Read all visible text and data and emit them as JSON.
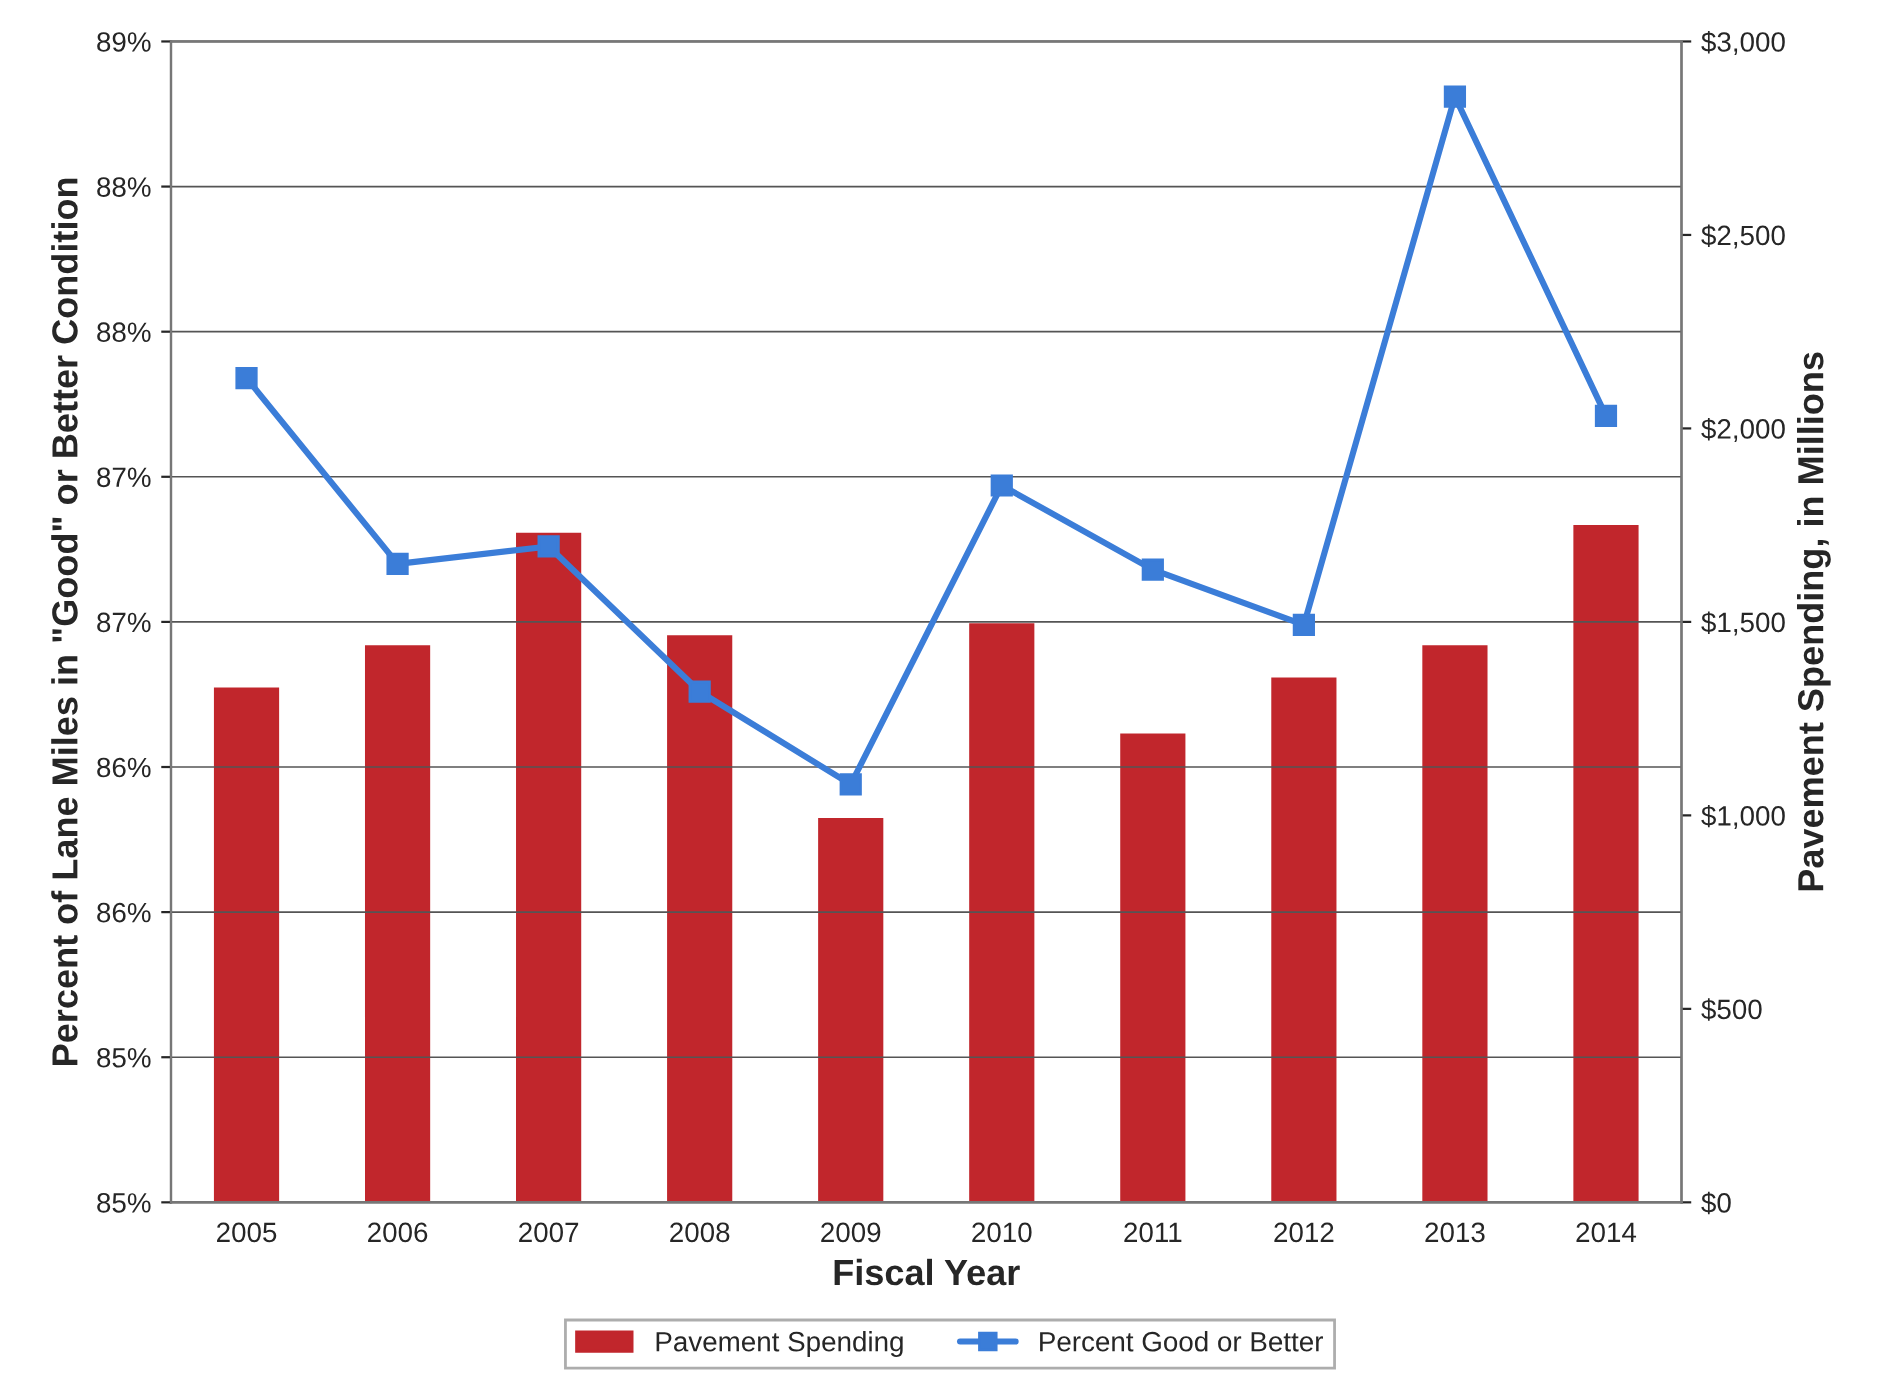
{
  "chart_data": {
    "type": "bar",
    "xlabel": "Fiscal Year",
    "ylabel": "Percent of Lane Miles in \"Good\" or Better Condition",
    "y2label": "Pavement Spending, in Millions",
    "categories": [
      "2005",
      "2006",
      "2007",
      "2008",
      "2009",
      "2010",
      "2011",
      "2012",
      "2013",
      "2014"
    ],
    "series": [
      {
        "name": "Pavement Spending",
        "axis": "y2",
        "color": "#c1262c",
        "values": [
          1334,
          1443,
          1734,
          1469,
          997,
          1500,
          1215,
          1360,
          1443,
          1754
        ]
      },
      {
        "name": "Percent Good or Better",
        "type": "line",
        "axis": "y",
        "color": "#3b7dd8",
        "marker": "square",
        "values": [
          87.84,
          87.2,
          87.26,
          86.76,
          86.44,
          87.47,
          87.18,
          86.99,
          88.81,
          87.71
        ]
      }
    ],
    "ylim": [
      85,
      89
    ],
    "yticks": [
      {
        "value": 85,
        "label": "85%"
      },
      {
        "value": 85.5,
        "label": "85%"
      },
      {
        "value": 86,
        "label": "86%"
      },
      {
        "value": 86.5,
        "label": "86%"
      },
      {
        "value": 87,
        "label": "87%"
      },
      {
        "value": 87.5,
        "label": "87%"
      },
      {
        "value": 88,
        "label": "88%"
      },
      {
        "value": 88.5,
        "label": "88%"
      },
      {
        "value": 89,
        "label": "89%"
      }
    ],
    "y2lim": [
      0,
      3000
    ],
    "y2ticks": [
      {
        "value": 0,
        "label": "$0"
      },
      {
        "value": 500,
        "label": "$500"
      },
      {
        "value": 1000,
        "label": "$1,000"
      },
      {
        "value": 1500,
        "label": "$1,500"
      },
      {
        "value": 2000,
        "label": "$2,000"
      },
      {
        "value": 2500,
        "label": "$2,500"
      },
      {
        "value": 3000,
        "label": "$3,000"
      }
    ],
    "grid": "y",
    "legend": "bottom"
  }
}
